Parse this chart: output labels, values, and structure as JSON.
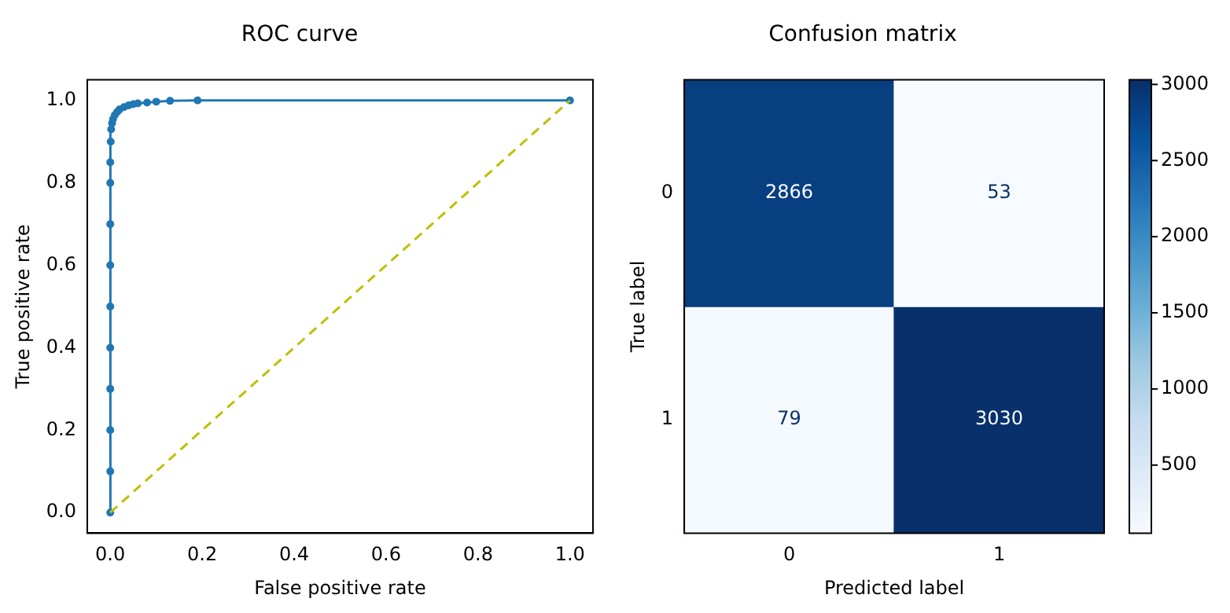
{
  "chart_data": [
    {
      "type": "line",
      "title": "ROC curve",
      "xlabel": "False positive rate",
      "ylabel": "True positive rate",
      "xlim": [
        -0.05,
        1.05
      ],
      "ylim": [
        -0.05,
        1.05
      ],
      "xticks": [
        {
          "value": 0,
          "label": "0.0"
        },
        {
          "value": 0.2,
          "label": "0.2"
        },
        {
          "value": 0.4,
          "label": "0.4"
        },
        {
          "value": 0.6,
          "label": "0.6"
        },
        {
          "value": 0.8,
          "label": "0.8"
        },
        {
          "value": 1,
          "label": "1.0"
        }
      ],
      "yticks": [
        {
          "value": 0,
          "label": "0.0"
        },
        {
          "value": 0.2,
          "label": "0.2"
        },
        {
          "value": 0.4,
          "label": "0.4"
        },
        {
          "value": 0.6,
          "label": "0.6"
        },
        {
          "value": 0.8,
          "label": "0.8"
        },
        {
          "value": 1,
          "label": "1.0"
        }
      ],
      "marker": "circle",
      "series": [
        {
          "color": "#1f77b4",
          "x": [
            0,
            0,
            0,
            0,
            0,
            0,
            0,
            0,
            0,
            0,
            0.001,
            0.002,
            0.004,
            0.006,
            0.01,
            0.015,
            0.02,
            0.03,
            0.04,
            0.05,
            0.06,
            0.08,
            0.1,
            0.13,
            0.19,
            1
          ],
          "values": [
            0,
            0.1,
            0.2,
            0.3,
            0.4,
            0.5,
            0.6,
            0.7,
            0.8,
            0.85,
            0.9,
            0.93,
            0.945,
            0.955,
            0.965,
            0.972,
            0.978,
            0.984,
            0.988,
            0.991,
            0.993,
            0.995,
            0.997,
            0.999,
            1,
            1
          ]
        },
        {
          "color": "#bfbf00",
          "marker": "none",
          "line_style": "dashed",
          "x": [
            0,
            1
          ],
          "values": [
            0,
            1
          ]
        }
      ]
    },
    {
      "type": "heatmap",
      "title": "Confusion matrix",
      "xlabel": "Predicted label",
      "ylabel": "True label",
      "categories": [
        "0",
        "1"
      ],
      "y_categories": [
        "0",
        "1"
      ],
      "cells": [
        [
          2866,
          53
        ],
        [
          79,
          3030
        ]
      ],
      "data_labels": true,
      "clim": [
        53,
        3030
      ],
      "cticks": [
        500,
        1000,
        1500,
        2000,
        2500,
        3000
      ]
    }
  ]
}
